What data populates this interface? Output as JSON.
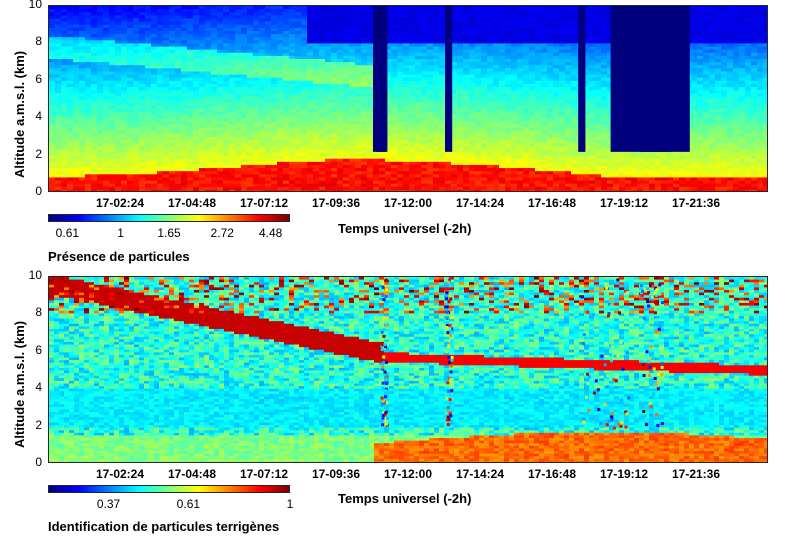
{
  "chart_data": [
    {
      "type": "heatmap",
      "ylabel": "Altitude a.m.s.l. (km)",
      "xlabel": "Temps universel (-2h)",
      "ylim": [
        0,
        10
      ],
      "yticks": [
        "0",
        "2",
        "4",
        "6",
        "8",
        "10"
      ],
      "xticks": [
        "17-02:24",
        "17-04:48",
        "17-07:12",
        "17-09:36",
        "17-12:00",
        "17-14:24",
        "17-16:48",
        "17-19:12",
        "17-21:36"
      ],
      "colorbar": {
        "ticks": [
          "0.61",
          "1",
          "1.65",
          "2.72",
          "4.48"
        ],
        "label": "Présence de particules"
      },
      "colormap": "jet"
    },
    {
      "type": "heatmap",
      "ylabel": "Altitude a.m.s.l. (km)",
      "xlabel": "Temps universel (-2h)",
      "ylim": [
        0,
        10
      ],
      "yticks": [
        "0",
        "2",
        "4",
        "6",
        "8",
        "10"
      ],
      "xticks": [
        "17-02:24",
        "17-04:48",
        "17-07:12",
        "17-09:36",
        "17-12:00",
        "17-14:24",
        "17-16:48",
        "17-19:12",
        "17-21:36"
      ],
      "colorbar": {
        "ticks": [
          "0.37",
          "0.61",
          "1"
        ],
        "label": "Identification de particules terrigènes"
      },
      "colormap": "jet"
    }
  ]
}
